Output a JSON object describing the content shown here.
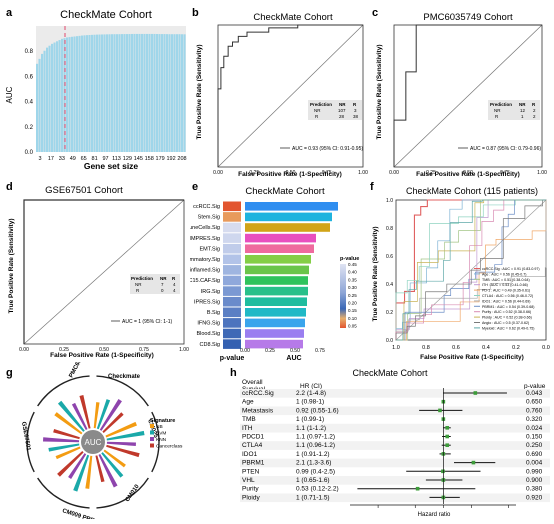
{
  "panel_letters": [
    "a",
    "b",
    "c",
    "d",
    "e",
    "f",
    "g",
    "h"
  ],
  "panel_a": {
    "title": "CheckMate Cohort",
    "ylabel": "AUC",
    "xlabel": "Gene set size",
    "yticks": [
      "0.0",
      "0.2",
      "0.4",
      "0.6",
      "0.8"
    ],
    "xticks": [
      "3",
      "17",
      "33",
      "49",
      "65",
      "81",
      "97",
      "113",
      "129",
      "145",
      "158",
      "179",
      "192",
      "208"
    ]
  },
  "panel_b": {
    "title": "CheckMate Cohort",
    "ylabel": "True Positive Rate (Sensitivity)",
    "xlabel": "False Positive Rate (1-Specificity)",
    "xticks": [
      "0.00",
      "0.25",
      "0.50",
      "0.75",
      "1.00"
    ],
    "yticks": [
      "0.00",
      "0.25",
      "0.50",
      "0.75",
      "1.00"
    ],
    "table": {
      "header": [
        "Prediction",
        "NR",
        "R"
      ],
      "rows": [
        [
          "NR",
          "107",
          "3"
        ],
        [
          "R",
          "28",
          "38"
        ]
      ]
    },
    "legend": "AUC = 0.93 (95% CI: 0.91-0.95)"
  },
  "panel_c": {
    "title": "PMC6035749 Cohort",
    "ylabel": "True Positive Rate (Sensitivity)",
    "xlabel": "False Positive Rate (1-Specificity)",
    "xticks": [
      "0.00",
      "0.25",
      "0.50",
      "0.75",
      "1.00"
    ],
    "yticks": [
      "0.00",
      "0.25",
      "0.50",
      "0.75",
      "1.00"
    ],
    "table": {
      "header": [
        "Prediction",
        "NR",
        "R"
      ],
      "rows": [
        [
          "NR",
          "12",
          "2"
        ],
        [
          "R",
          "1",
          "2"
        ]
      ]
    },
    "legend": "AUC = 0.87 (95% CI: 0.79-0.96)"
  },
  "panel_d": {
    "title": "GSE67501 Cohort",
    "ylabel": "True Positive Rate (Sensitivity)",
    "xlabel": "False Positive Rate (1-Specificity)",
    "xticks": [
      "0.00",
      "0.25",
      "0.50",
      "0.75",
      "1.00"
    ],
    "yticks": [
      "0.00",
      "0.25",
      "0.50",
      "0.75",
      "1.00"
    ],
    "table": {
      "header": [
        "Prediction",
        "NR",
        "R"
      ],
      "rows": [
        [
          "NR",
          "7",
          "4"
        ],
        [
          "R",
          "0",
          "4"
        ]
      ]
    },
    "legend": "AUC = 1 (95% CI: 1-1)"
  },
  "panel_e": {
    "title": "CheckMate Cohort",
    "col_header": "p-value",
    "xlabel": "AUC",
    "xticks": [
      "0.00",
      "0.25",
      "0.50",
      "0.75"
    ],
    "colorbar_title": "p-value",
    "colorbar_ticks": [
      "0.45",
      "0.40",
      "0.35",
      "0.30",
      "0.25",
      "0.20",
      "0.15",
      "0.10",
      "0.05"
    ]
  },
  "panel_f": {
    "title": "CheckMate Cohort (115 patients)",
    "ylabel": "True Positive Rate (Sensitivity)",
    "xlabel": "False Positive Rate (1-Specificity)",
    "xticks": [
      "1.0",
      "0.8",
      "0.6",
      "0.4",
      "0.2",
      "0.0"
    ],
    "yticks": [
      "0.0",
      "0.2",
      "0.4",
      "0.6",
      "0.8",
      "1.0"
    ],
    "legend": [
      "ccRCC.Sig : AUC = 0.91 (0.83-0.97)",
      "Age : AUC = 0.56 (0.45-0.7)",
      "TMB : AUC = 0.51 (0.38-0.64)",
      "ITH : AUC = 0.53 (0.41-0.66)",
      "PD-1 : AUC = 0.49 (0.35-0.61)",
      "CTLA4 : AUC = 0.56 (0.46-0.72)",
      "IDO1 : AUC = 0.56 (0.44-0.69)",
      "PBRM1 : AUC = 0.54 (0.39-0.68)",
      "Purity : AUC = 0.52 (0.38-0.66)",
      "Ploidy : AUC = 0.52 (0.38-0.66)",
      "Angio : AUC = 0.5 (0.37-0.62)",
      "Myeloid : AUC = 0.62 (0.49-0.75)"
    ]
  },
  "panel_g": {
    "center_label": "AUC",
    "cohorts": [
      "Checkmate",
      "CM025",
      "CM010",
      "CM009 PRE",
      "GSE67501",
      "PMC6035749"
    ],
    "legend_title": "Signature",
    "legend_items": [
      "NB",
      "SVM",
      "KNN",
      "Cancerclass"
    ]
  },
  "panel_h": {
    "title": "CheckMate Cohort",
    "col1": "Overall\nSurvival",
    "col1_lines": [
      "Overall",
      "Survival"
    ],
    "col2": "HR (CI)",
    "col3": "p-value",
    "xlabel": "Hazard ratio",
    "rows": [
      {
        "name": "ccRCC.Sig",
        "hr": "2.2 (1-4.8)",
        "p": "0.043"
      },
      {
        "name": "Age",
        "hr": "1 (0.98-1)",
        "p": "0.650"
      },
      {
        "name": "Metastasis",
        "hr": "0.92 (0.55-1.6)",
        "p": "0.760"
      },
      {
        "name": "TMB",
        "hr": "1 (0.99-1)",
        "p": "0.320"
      },
      {
        "name": "ITH",
        "hr": "1.1 (1-1.2)",
        "p": "0.024"
      },
      {
        "name": "PDCD1",
        "hr": "1.1 (0.97-1.2)",
        "p": "0.150"
      },
      {
        "name": "CTLA4",
        "hr": "1.1 (0.96-1.2)",
        "p": "0.250"
      },
      {
        "name": "IDO1",
        "hr": "1 (0.91-1.2)",
        "p": "0.690"
      },
      {
        "name": "PBRM1",
        "hr": "2.1 (1.3-3.6)",
        "p": "0.004"
      },
      {
        "name": "PTEN",
        "hr": "0.99 (0.4-2.5)",
        "p": "0.990"
      },
      {
        "name": "VHL",
        "hr": "1 (0.65-1.6)",
        "p": "0.900"
      },
      {
        "name": "Purity",
        "hr": "0.53 (0.12-2.2)",
        "p": "0.380"
      },
      {
        "name": "Ploidy",
        "hr": "1 (0.71-1.5)",
        "p": "0.920"
      }
    ]
  },
  "colors": {
    "bar_fill": "#9fd6ea",
    "threshold_line": "#e0486c",
    "roc_line": "#333333",
    "forest_point": "#3d9c3a"
  },
  "chart_data": [
    {
      "type": "bar",
      "title": "CheckMate Cohort",
      "xlabel": "Gene set size",
      "ylabel": "AUC",
      "ylim": [
        0,
        1
      ],
      "x_range": [
        3,
        208
      ],
      "description_values": "AUC rises from about 0.70 at gene set size 3 to about 0.92 by size 40, then plateaus near 0.93-0.94",
      "values_sampled": [
        0.7,
        0.78,
        0.83,
        0.86,
        0.88,
        0.9,
        0.91,
        0.915,
        0.92,
        0.925,
        0.928,
        0.93,
        0.932,
        0.933,
        0.934,
        0.935,
        0.935,
        0.936,
        0.936,
        0.937,
        0.937,
        0.937,
        0.937,
        0.937,
        0.936,
        0.936,
        0.935,
        0.935,
        0.935,
        0.934
      ],
      "threshold_x": 44
    },
    {
      "type": "bar",
      "title": "CheckMate Cohort",
      "xlabel": "AUC",
      "categories": [
        "ccRCC.Sig",
        "Stem.Sig",
        "ImmuneCells.Sig",
        "IMPRES.Sig",
        "EMT.Sig",
        "Inflammatory.Sig",
        "T.cell.inflamed.Sig",
        "LRRC15.CAF.Sig",
        "IRG.Sig",
        "IPRES.Sig",
        "B.Sig",
        "IFNG.Sig",
        "Blood.Sig",
        "CD8.Sig"
      ],
      "values": [
        0.93,
        0.87,
        0.85,
        0.71,
        0.69,
        0.66,
        0.64,
        0.63,
        0.63,
        0.62,
        0.61,
        0.6,
        0.59,
        0.58
      ],
      "xlim": [
        0,
        0.9
      ]
    },
    {
      "type": "scatter",
      "title": "CheckMate Cohort",
      "xlabel": "Hazard ratio",
      "categories": [
        "ccRCC.Sig",
        "Age",
        "Metastasis",
        "TMB",
        "ITH",
        "PDCD1",
        "CTLA4",
        "IDO1",
        "PBRM1",
        "PTEN",
        "VHL",
        "Purity",
        "Ploidy"
      ],
      "hr": [
        2.2,
        1,
        0.92,
        1,
        1.1,
        1.1,
        1.1,
        1,
        2.1,
        0.99,
        1,
        0.53,
        1
      ],
      "lower": [
        1,
        0.98,
        0.55,
        0.99,
        1,
        0.97,
        0.96,
        0.91,
        1.3,
        0.4,
        0.65,
        0.12,
        0.71
      ],
      "upper": [
        4.8,
        1,
        1.6,
        1,
        1.2,
        1.2,
        1.2,
        1.2,
        3.6,
        2.5,
        1.6,
        2.2,
        1.5
      ]
    }
  ]
}
